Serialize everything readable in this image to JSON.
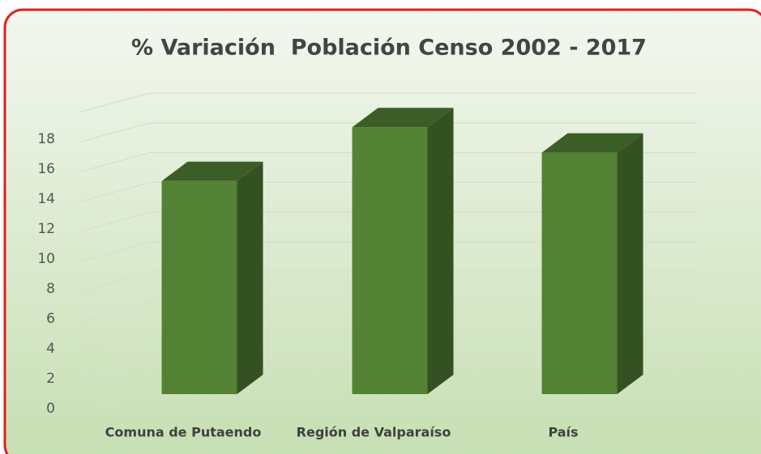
{
  "chart_data": {
    "type": "bar3d",
    "title": "% Variación  Población Censo 2002 - 2017",
    "categories": [
      "Comuna de Putaendo",
      "Región de Valparaíso",
      "País"
    ],
    "values": [
      15.2,
      18.8,
      17.1
    ],
    "color": "#548235",
    "ylim": [
      0,
      20
    ],
    "yticks": [
      0,
      2,
      4,
      6,
      8,
      10,
      12,
      14,
      16,
      18
    ],
    "grid": true
  }
}
